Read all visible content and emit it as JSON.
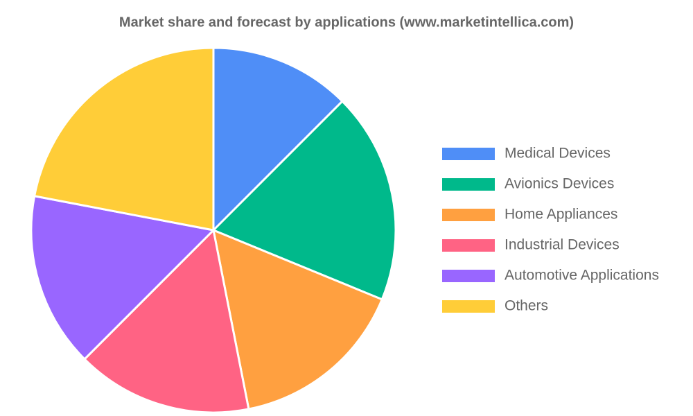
{
  "chart_data": {
    "type": "pie",
    "title": "Market share and forecast by applications (www.marketintellica.com)",
    "categories": [
      "Medical Devices",
      "Avionics Devices",
      "Home Appliances",
      "Industrial Devices",
      "Automotive Applications",
      "Others"
    ],
    "values": [
      12.5,
      18.7,
      15.7,
      15.6,
      15.5,
      22
    ],
    "colors": [
      "#4f8ef7",
      "#00b98b",
      "#ffa040",
      "#ff6384",
      "#9966ff",
      "#ffcd38"
    ],
    "legend": "right"
  }
}
